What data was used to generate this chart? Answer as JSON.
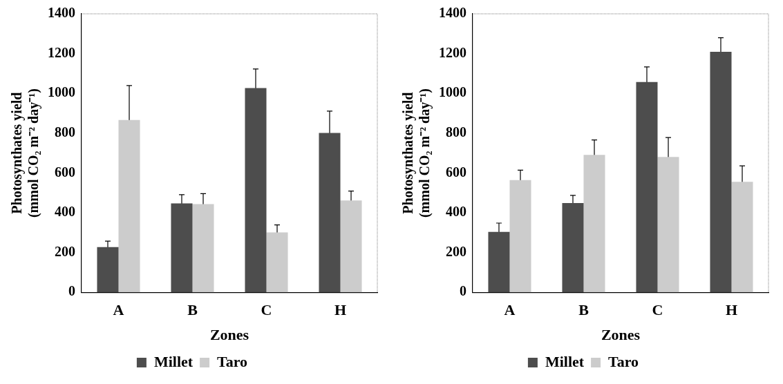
{
  "chart_data": [
    {
      "type": "bar",
      "xlabel": "Zones",
      "ylabel": "Photosynthates yield (mmol CO₂ m⁻² day⁻¹)",
      "categories": [
        "A",
        "B",
        "C",
        "H"
      ],
      "ylim": [
        0,
        1400
      ],
      "yticks": [
        0,
        200,
        400,
        600,
        800,
        1000,
        1200,
        1400
      ],
      "legend": "bottom",
      "grid": false,
      "series": [
        {
          "name": "Millet",
          "color": "#4d4d4d",
          "values": [
            227,
            447,
            1027,
            801
          ],
          "errors": [
            30,
            44,
            96,
            110
          ]
        },
        {
          "name": "Taro",
          "color": "#cccccc",
          "values": [
            866,
            443,
            301,
            462
          ],
          "errors": [
            173,
            53,
            38,
            47
          ]
        }
      ]
    },
    {
      "type": "bar",
      "xlabel": "Zones",
      "ylabel": "Photosynthates yield (mmol CO₂ m⁻² day⁻¹)",
      "categories": [
        "A",
        "B",
        "C",
        "H"
      ],
      "ylim": [
        0,
        1400
      ],
      "yticks": [
        0,
        200,
        400,
        600,
        800,
        1000,
        1200,
        1400
      ],
      "legend": "bottom",
      "grid": false,
      "series": [
        {
          "name": "Millet",
          "color": "#4d4d4d",
          "values": [
            304,
            449,
            1057,
            1209
          ],
          "errors": [
            44,
            38,
            76,
            71
          ]
        },
        {
          "name": "Taro",
          "color": "#cccccc",
          "values": [
            564,
            691,
            680,
            555
          ],
          "errors": [
            50,
            75,
            98,
            81
          ]
        }
      ]
    }
  ]
}
